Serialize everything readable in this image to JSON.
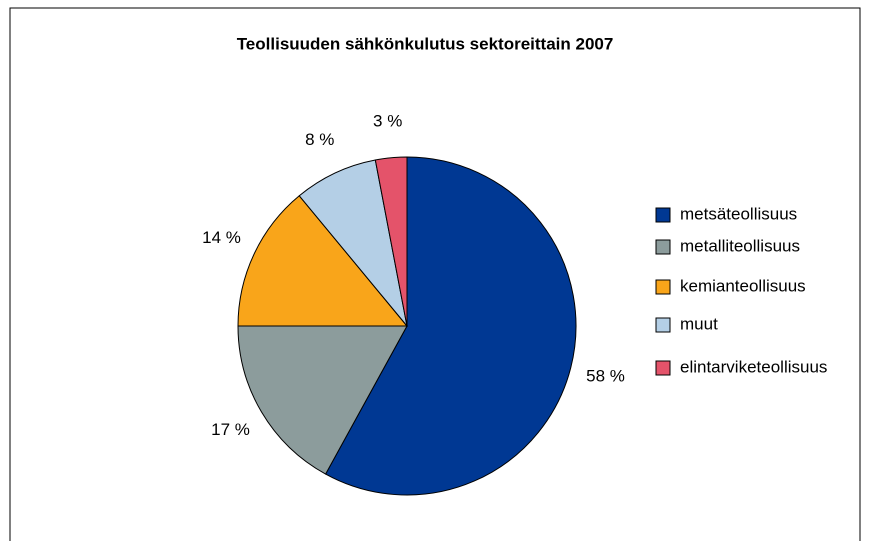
{
  "chart_data": {
    "type": "pie",
    "title": "Teollisuuden sähkönkulutus sektoreittain 2007",
    "categories": [
      "metsäteollisuus",
      "metalliteollisuus",
      "kemianteollisuus",
      "muut",
      "elintarviketeollisuus"
    ],
    "values": [
      58,
      17,
      14,
      8,
      3
    ],
    "value_labels": [
      "58 %",
      "17 %",
      "14 %",
      "8 %",
      "3 %"
    ],
    "colors": [
      "#003893",
      "#8c9c9c",
      "#f9a51a",
      "#b4cfe6",
      "#e4536a"
    ],
    "legend": "right"
  }
}
